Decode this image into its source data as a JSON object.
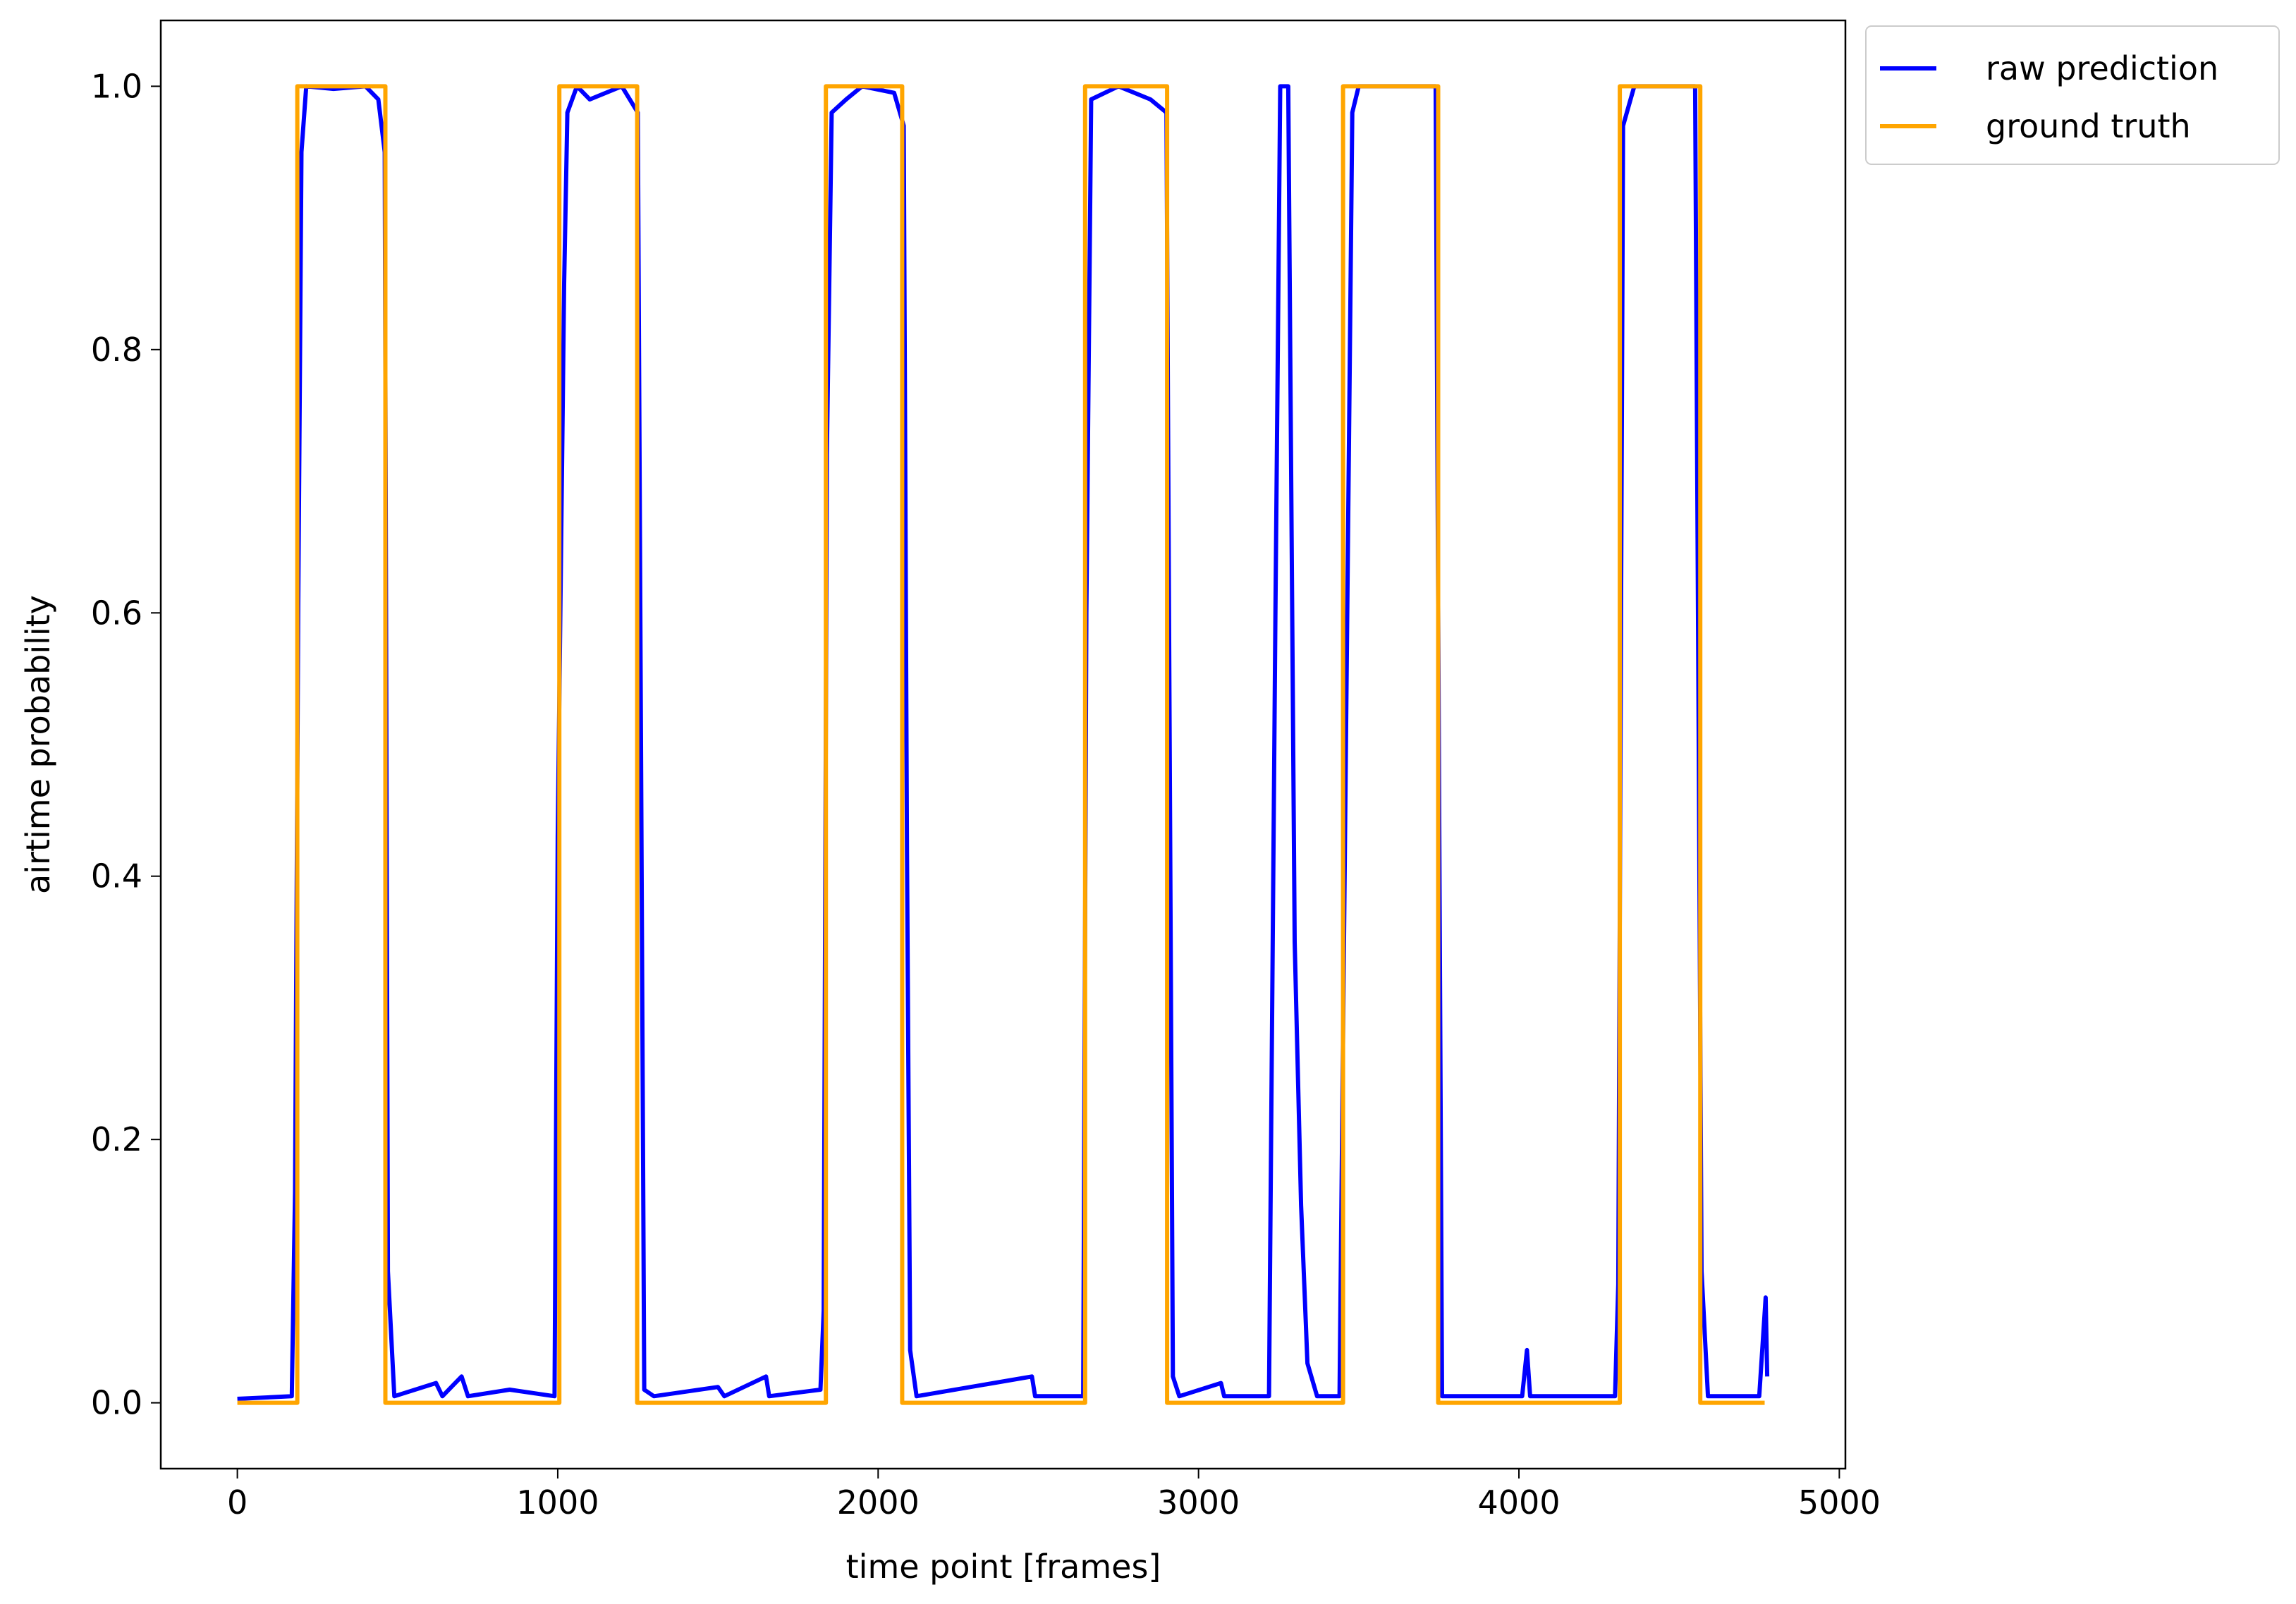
{
  "chart_data": {
    "type": "line",
    "xlabel": "time point [frames]",
    "ylabel": "airtime probability",
    "xlim": [
      -239,
      5019
    ],
    "ylim": [
      -0.05,
      1.05
    ],
    "xticks": [
      0,
      1000,
      2000,
      3000,
      4000,
      5000
    ],
    "yticks": [
      {
        "value": 0,
        "label": "0.0"
      },
      {
        "value": 0.2,
        "label": "0.2"
      },
      {
        "value": 0.4,
        "label": "0.4"
      },
      {
        "value": 0.6,
        "label": "0.6"
      },
      {
        "value": 0.8,
        "label": "0.8"
      },
      {
        "value": 1,
        "label": "1.0"
      }
    ],
    "legend": "outside upper right",
    "series": [
      {
        "name": "raw prediction",
        "color": "#0000ff",
        "x": [
          0,
          170,
          180,
          190,
          200,
          215,
          300,
          400,
          440,
          460,
          470,
          490,
          620,
          640,
          700,
          720,
          850,
          990,
          1000,
          1010,
          1020,
          1030,
          1060,
          1100,
          1200,
          1250,
          1270,
          1300,
          1500,
          1520,
          1650,
          1660,
          1820,
          1830,
          1840,
          1855,
          1900,
          1950,
          2050,
          2080,
          2090,
          2100,
          2120,
          2480,
          2490,
          2640,
          2650,
          2665,
          2750,
          2850,
          2900,
          2920,
          2940,
          3070,
          3080,
          3220,
          3240,
          3255,
          3280,
          3300,
          3320,
          3340,
          3370,
          3440,
          3460,
          3480,
          3500,
          3740,
          3760,
          4010,
          4025,
          4035,
          4300,
          4310,
          4325,
          4360,
          4550,
          4570,
          4590,
          4750,
          4770,
          4775
        ],
        "values": [
          0.003,
          0.005,
          0.16,
          0.6,
          0.95,
          1.0,
          0.998,
          1.0,
          0.99,
          0.95,
          0.1,
          0.005,
          0.015,
          0.005,
          0.02,
          0.005,
          0.01,
          0.005,
          0.43,
          0.64,
          0.85,
          0.98,
          1.0,
          0.99,
          1.0,
          0.98,
          0.01,
          0.005,
          0.012,
          0.005,
          0.02,
          0.005,
          0.01,
          0.07,
          0.72,
          0.98,
          0.99,
          1.0,
          0.995,
          0.97,
          0.42,
          0.04,
          0.005,
          0.02,
          0.005,
          0.005,
          0.6,
          0.99,
          1.0,
          0.99,
          0.98,
          0.02,
          0.005,
          0.015,
          0.005,
          0.005,
          0.6,
          1.0,
          1.0,
          0.35,
          0.15,
          0.03,
          0.005,
          0.005,
          0.5,
          0.98,
          1.0,
          1.0,
          0.005,
          0.005,
          0.04,
          0.005,
          0.005,
          0.09,
          0.97,
          1.0,
          1.0,
          0.1,
          0.005,
          0.005,
          0.08,
          0.02
        ]
      },
      {
        "name": "ground truth",
        "color": "#ffa500",
        "x": [
          0,
          187,
          187,
          462,
          462,
          1005,
          1005,
          1248,
          1248,
          1837,
          1837,
          2075,
          2075,
          2646,
          2646,
          2902,
          2902,
          3451,
          3451,
          3748,
          3748,
          4315,
          4315,
          4566,
          4566,
          4767
        ],
        "values": [
          0,
          0,
          1,
          1,
          0,
          0,
          1,
          1,
          0,
          0,
          1,
          1,
          0,
          0,
          1,
          1,
          0,
          0,
          1,
          1,
          0,
          0,
          1,
          1,
          0,
          0
        ]
      }
    ]
  }
}
